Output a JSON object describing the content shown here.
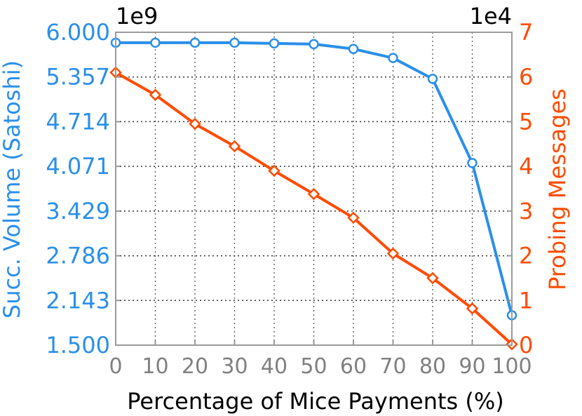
{
  "chart_data": {
    "type": "line",
    "title": "",
    "xlabel": "Percentage of Mice Payments (%)",
    "x": [
      0,
      10,
      20,
      30,
      40,
      50,
      60,
      70,
      80,
      90,
      100
    ],
    "x_ticks": [
      "0",
      "10",
      "20",
      "30",
      "40",
      "50",
      "60",
      "70",
      "80",
      "90",
      "100"
    ],
    "xlim": [
      0,
      100
    ],
    "left_axis": {
      "label": "Succ. Volume (Satoshi)",
      "multiplier": "1e9",
      "ylim": [
        1.5,
        6.0
      ],
      "ticks": [
        "1.500",
        "2.143",
        "2.786",
        "3.429",
        "4.071",
        "4.714",
        "5.357",
        "6.000"
      ],
      "color": "#2a8fea"
    },
    "right_axis": {
      "label": "Probing Messages",
      "multiplier": "1e4",
      "ylim": [
        0,
        7
      ],
      "ticks": [
        "0",
        "1",
        "2",
        "3",
        "4",
        "5",
        "6",
        "7"
      ],
      "color": "#ff4b00"
    },
    "series": [
      {
        "axis": "left",
        "marker": "circle",
        "color": "#2a8fea",
        "values": [
          5.85,
          5.85,
          5.85,
          5.85,
          5.84,
          5.83,
          5.76,
          5.63,
          5.33,
          4.12,
          1.93
        ]
      },
      {
        "axis": "right",
        "marker": "diamond",
        "color": "#ff4b00",
        "values": [
          6.1,
          5.6,
          4.95,
          4.45,
          3.9,
          3.38,
          2.85,
          2.05,
          1.5,
          0.82,
          0.02
        ]
      }
    ],
    "grid": true
  }
}
